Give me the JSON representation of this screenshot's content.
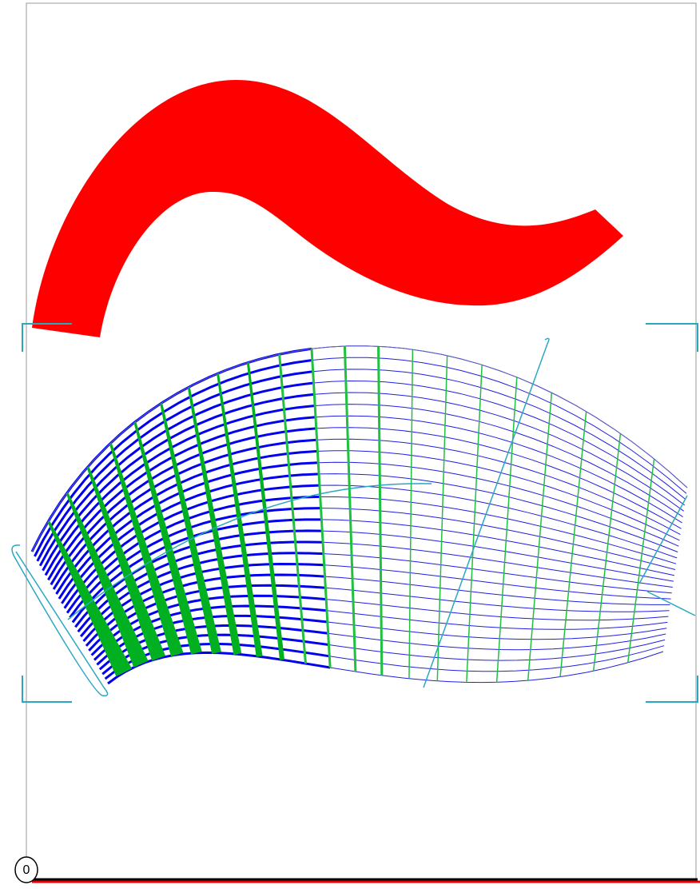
{
  "viewport": {
    "label": "0"
  }
}
